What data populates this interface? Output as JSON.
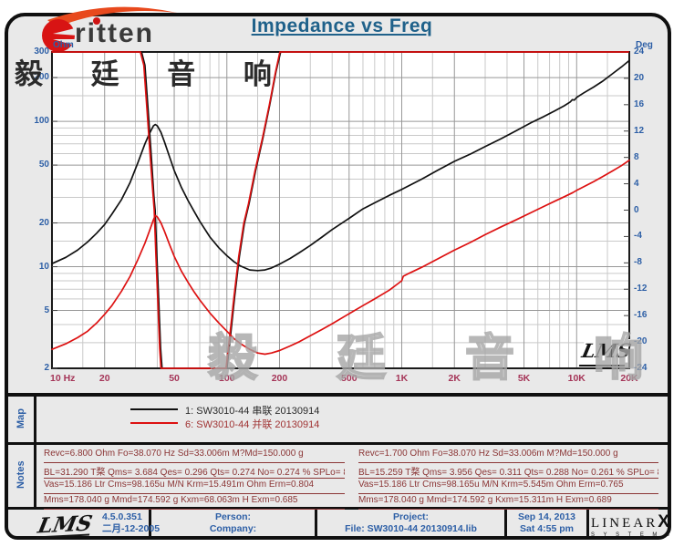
{
  "header": {
    "brand": "ritten",
    "brand_cjk": "毅 廷 音 响",
    "title": "Impedance vs Freq",
    "watermark": "毅 廷 音 响",
    "brand_red": "#d81414",
    "swoosh_color": "#e8491d"
  },
  "chart": {
    "lms_mark": "LMS",
    "y_left_unit": "Ohm",
    "y_right_unit": "Deg"
  },
  "chart_data": {
    "type": "line",
    "title": "Impedance vs Freq",
    "x_axis": {
      "scale": "log",
      "min": 10,
      "max": 20000,
      "unit": "Hz",
      "major_ticks": [
        {
          "f": 10,
          "label": "10 Hz"
        },
        {
          "f": 20,
          "label": "20"
        },
        {
          "f": 50,
          "label": "50"
        },
        {
          "f": 100,
          "label": "100"
        },
        {
          "f": 200,
          "label": "200"
        },
        {
          "f": 500,
          "label": "500"
        },
        {
          "f": 1000,
          "label": "1K"
        },
        {
          "f": 2000,
          "label": "2K"
        },
        {
          "f": 5000,
          "label": "5K"
        },
        {
          "f": 10000,
          "label": "10K"
        },
        {
          "f": 20000,
          "label": "20K"
        }
      ],
      "minor_ticks": [
        15,
        30,
        40,
        60,
        70,
        80,
        90,
        150,
        300,
        400,
        600,
        700,
        800,
        900,
        1500,
        3000,
        4000,
        6000,
        7000,
        8000,
        9000,
        15000
      ]
    },
    "y_left": {
      "scale": "log",
      "min": 2,
      "max": 300,
      "unit": "Ohm",
      "major_ticks": [
        300,
        200,
        100,
        50,
        20,
        10,
        5,
        2
      ],
      "minor_ticks": [
        150,
        90,
        80,
        70,
        60,
        40,
        30,
        15,
        9,
        8,
        7,
        6,
        4,
        3
      ]
    },
    "y_right": {
      "scale": "linear",
      "min": -24,
      "max": 24,
      "unit": "Deg",
      "ticks": [
        24,
        20,
        16,
        12,
        8,
        4,
        0,
        -4,
        -8,
        -12,
        -16,
        -20,
        -24
      ]
    },
    "grid": true,
    "legend_position": "map-row-below-chart",
    "series": [
      {
        "name": "impedance-series-1-black",
        "axis": "ohm",
        "color": "#111111",
        "points": [
          [
            10,
            10.5
          ],
          [
            12,
            11.6
          ],
          [
            14,
            13
          ],
          [
            16,
            14.8
          ],
          [
            18,
            17
          ],
          [
            20,
            19.5
          ],
          [
            22,
            23
          ],
          [
            25,
            29
          ],
          [
            28,
            38
          ],
          [
            31,
            52
          ],
          [
            34,
            70
          ],
          [
            36,
            82
          ],
          [
            38,
            93
          ],
          [
            39,
            95
          ],
          [
            40,
            93
          ],
          [
            42,
            84
          ],
          [
            44,
            72
          ],
          [
            47,
            57
          ],
          [
            50,
            46
          ],
          [
            55,
            35
          ],
          [
            60,
            28.5
          ],
          [
            65,
            24
          ],
          [
            70,
            20.5
          ],
          [
            80,
            16
          ],
          [
            90,
            13.5
          ],
          [
            100,
            11.9
          ],
          [
            110,
            10.8
          ],
          [
            120,
            10.1
          ],
          [
            135,
            9.5
          ],
          [
            150,
            9.4
          ],
          [
            165,
            9.5
          ],
          [
            180,
            9.8
          ],
          [
            200,
            10.4
          ],
          [
            230,
            11.4
          ],
          [
            260,
            12.5
          ],
          [
            300,
            14
          ],
          [
            350,
            16
          ],
          [
            400,
            18
          ],
          [
            500,
            21.5
          ],
          [
            600,
            25
          ],
          [
            700,
            27.5
          ],
          [
            850,
            31
          ],
          [
            1000,
            34
          ],
          [
            1300,
            40
          ],
          [
            1600,
            46
          ],
          [
            2000,
            53
          ],
          [
            2500,
            60
          ],
          [
            3000,
            67
          ],
          [
            3700,
            76
          ],
          [
            4500,
            86
          ],
          [
            5500,
            98
          ],
          [
            6500,
            108
          ],
          [
            7500,
            118
          ],
          [
            8500,
            128
          ],
          [
            9200,
            136
          ],
          [
            9450,
            141
          ],
          [
            9700,
            140
          ],
          [
            10000,
            146
          ],
          [
            11000,
            157
          ],
          [
            12500,
            172
          ],
          [
            14000,
            188
          ],
          [
            16000,
            212
          ],
          [
            18000,
            236
          ],
          [
            20000,
            262
          ]
        ]
      },
      {
        "name": "phase-series-1-black",
        "axis": "deg",
        "color": "#111111",
        "points": [
          [
            10,
            24
          ],
          [
            32.5,
            24
          ],
          [
            34,
            22
          ],
          [
            35.5,
            15
          ],
          [
            37,
            8
          ],
          [
            38.3,
            2
          ],
          [
            38.9,
            0
          ],
          [
            39.8,
            -7
          ],
          [
            40.8,
            -14
          ],
          [
            41.8,
            -21
          ],
          [
            42.6,
            -24
          ],
          [
            100,
            -24
          ],
          [
            105,
            -19
          ],
          [
            111,
            -13
          ],
          [
            118,
            -7
          ],
          [
            126,
            -2
          ],
          [
            134,
            1
          ],
          [
            146,
            6
          ],
          [
            161,
            11
          ],
          [
            176,
            16
          ],
          [
            191,
            21
          ],
          [
            203,
            24
          ],
          [
            20000,
            24
          ]
        ]
      },
      {
        "name": "phase-series-6-red",
        "axis": "deg",
        "color": "#dd1111",
        "points": [
          [
            10,
            24
          ],
          [
            32,
            24
          ],
          [
            33.5,
            22
          ],
          [
            35,
            15
          ],
          [
            36.5,
            8
          ],
          [
            37.9,
            2
          ],
          [
            38.4,
            0
          ],
          [
            39.3,
            -7
          ],
          [
            40.3,
            -14
          ],
          [
            41.3,
            -21
          ],
          [
            42,
            -24
          ],
          [
            99,
            -24
          ],
          [
            104,
            -19
          ],
          [
            110,
            -13
          ],
          [
            117,
            -7
          ],
          [
            125,
            -2
          ],
          [
            133,
            1
          ],
          [
            145,
            6
          ],
          [
            160,
            11
          ],
          [
            175,
            16
          ],
          [
            190,
            21
          ],
          [
            201,
            24
          ],
          [
            19800,
            24
          ]
        ]
      },
      {
        "name": "impedance-series-6-red",
        "axis": "ohm",
        "color": "#dd1111",
        "points": [
          [
            10,
            2.7
          ],
          [
            12,
            2.95
          ],
          [
            14,
            3.25
          ],
          [
            16,
            3.6
          ],
          [
            18,
            4.1
          ],
          [
            20,
            4.7
          ],
          [
            22,
            5.4
          ],
          [
            25,
            6.8
          ],
          [
            28,
            8.6
          ],
          [
            31,
            11.2
          ],
          [
            34,
            14.5
          ],
          [
            36,
            17.5
          ],
          [
            38,
            21
          ],
          [
            39,
            22.5
          ],
          [
            40,
            22
          ],
          [
            42,
            20
          ],
          [
            44,
            17.5
          ],
          [
            47,
            14.2
          ],
          [
            50,
            11.8
          ],
          [
            55,
            9.3
          ],
          [
            60,
            7.8
          ],
          [
            65,
            6.7
          ],
          [
            70,
            5.9
          ],
          [
            80,
            4.8
          ],
          [
            90,
            4.1
          ],
          [
            100,
            3.6
          ],
          [
            110,
            3.2
          ],
          [
            120,
            2.95
          ],
          [
            135,
            2.7
          ],
          [
            150,
            2.55
          ],
          [
            165,
            2.5
          ],
          [
            180,
            2.55
          ],
          [
            200,
            2.65
          ],
          [
            230,
            2.85
          ],
          [
            260,
            3.05
          ],
          [
            300,
            3.35
          ],
          [
            350,
            3.7
          ],
          [
            400,
            4.05
          ],
          [
            500,
            4.75
          ],
          [
            600,
            5.4
          ],
          [
            700,
            6.0
          ],
          [
            850,
            6.9
          ],
          [
            1000,
            8.0
          ],
          [
            1020,
            8.6
          ],
          [
            1100,
            9.0
          ],
          [
            1300,
            9.9
          ],
          [
            1600,
            11.3
          ],
          [
            2000,
            13
          ],
          [
            2500,
            14.8
          ],
          [
            3000,
            16.6
          ],
          [
            3700,
            18.8
          ],
          [
            4500,
            21
          ],
          [
            5500,
            23.6
          ],
          [
            6500,
            26
          ],
          [
            7500,
            28.2
          ],
          [
            8500,
            30.3
          ],
          [
            9500,
            32.3
          ],
          [
            10000,
            33.5
          ],
          [
            11000,
            35.5
          ],
          [
            12500,
            38.5
          ],
          [
            14000,
            41.5
          ],
          [
            16000,
            45.5
          ],
          [
            18000,
            49.5
          ],
          [
            20000,
            54
          ]
        ]
      }
    ]
  },
  "map": {
    "label": "Map",
    "entries": [
      {
        "label": "1: SW3010-44 串联 20130914",
        "color": "#111111"
      },
      {
        "label": "6: SW3010-44  并联 20130914",
        "color": "#dd1111"
      }
    ]
  },
  "notes": {
    "label": "Notes",
    "left": [
      "Revc=6.800 Ohm  Fo=38.070 Hz  Sd=33.006m M?Md=150.000 g",
      "BL=31.290 T楘  Qms= 3.684  Qes= 0.296  Qts= 0.274  No= 0.274 %  SPLo= 86.4 dB",
      "Vas=15.186 Ltr  Cms=98.165u M/N  Krm=15.491m Ohm  Erm=0.804",
      "Mms=178.040 g  Mmd=174.592 g  Kxm=68.063m H  Exm=0.685"
    ],
    "right": [
      "Revc=1.700 Ohm  Fo=38.070 Hz  Sd=33.006m M?Md=150.000 g",
      "BL=15.259 T楘  Qms= 3.956  Qes= 0.311  Qts= 0.288  No= 0.261 %  SPLo= 86.2 dB",
      "Vas=15.186 Ltr  Cms=98.165u M/N  Krm=5.545m Ohm  Erm=0.765",
      "Mms=178.040 g  Mmd=174.592 g  Kxm=15.311m H  Exm=0.689"
    ]
  },
  "footer": {
    "lms_logo": "LMS",
    "version": "4.5.0.351",
    "version_date": "二月-12-2005",
    "person_label": "Person:",
    "company_label": "Company:",
    "project_label": "Project:",
    "file_label": "File: SW3010-44  20130914.lib",
    "date": "Sep 14, 2013",
    "time": "Sat  4:55 pm",
    "brand_top": [
      "L",
      "I",
      "N",
      "E",
      "A",
      "R"
    ],
    "brand_x": "X",
    "brand_bottom": [
      "S",
      "Y",
      "S",
      "T",
      "E",
      "M",
      "S"
    ]
  }
}
